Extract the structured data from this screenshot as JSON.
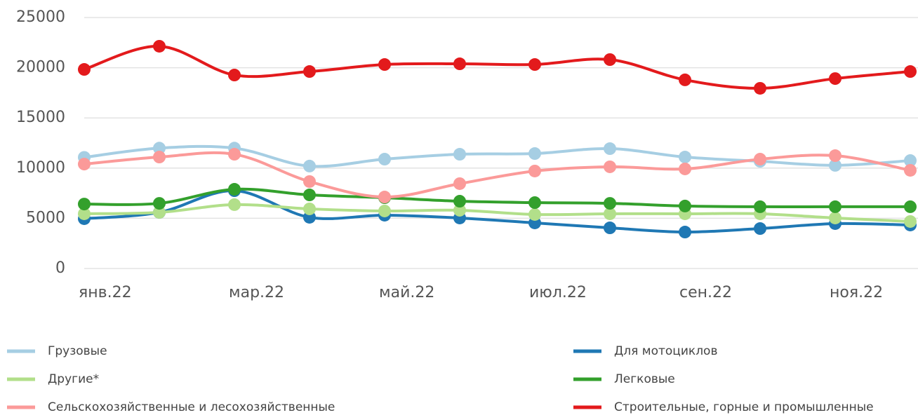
{
  "chart_data": {
    "type": "line",
    "categories": [
      "янв.22",
      null,
      "мар.22",
      null,
      "май.22",
      null,
      "июл.22",
      null,
      "сен.22",
      null,
      "ноя.22",
      null
    ],
    "series": [
      {
        "name": "Грузовые",
        "color": "#a6cee3",
        "values": [
          11070,
          11990,
          11990,
          10200,
          10890,
          11380,
          11450,
          11940,
          11100,
          10680,
          10270,
          10750
        ]
      },
      {
        "name": "Для мотоциклов",
        "color": "#1f78b4",
        "values": [
          4960,
          5590,
          7750,
          5100,
          5310,
          5030,
          4540,
          4050,
          3630,
          3980,
          4470,
          4330
        ]
      },
      {
        "name": "Другие*",
        "color": "#b2df8a",
        "values": [
          5450,
          5590,
          6360,
          5940,
          5730,
          5800,
          5380,
          5450,
          5450,
          5450,
          5030,
          4680
        ]
      },
      {
        "name": "Легковые",
        "color": "#33a02c",
        "values": [
          6420,
          6490,
          7890,
          7330,
          7050,
          6700,
          6560,
          6490,
          6220,
          6150,
          6150,
          6150
        ]
      },
      {
        "name": "Сельскохозяйственные и лесохозяйственные",
        "color": "#fb9a99",
        "values": [
          10400,
          11100,
          11380,
          8660,
          7120,
          8450,
          9710,
          10130,
          9920,
          10890,
          11240,
          9780
        ]
      },
      {
        "name": "Строительные, горные и промышленные",
        "color": "#e31a1c",
        "values": [
          19830,
          22140,
          19270,
          19620,
          20320,
          20390,
          20320,
          20810,
          18790,
          17950,
          18920,
          19620
        ]
      }
    ],
    "ylim": [
      0,
      25000
    ],
    "yticks": [
      0,
      5000,
      10000,
      15000,
      20000,
      25000
    ],
    "grid": true,
    "legend": "bottom"
  }
}
